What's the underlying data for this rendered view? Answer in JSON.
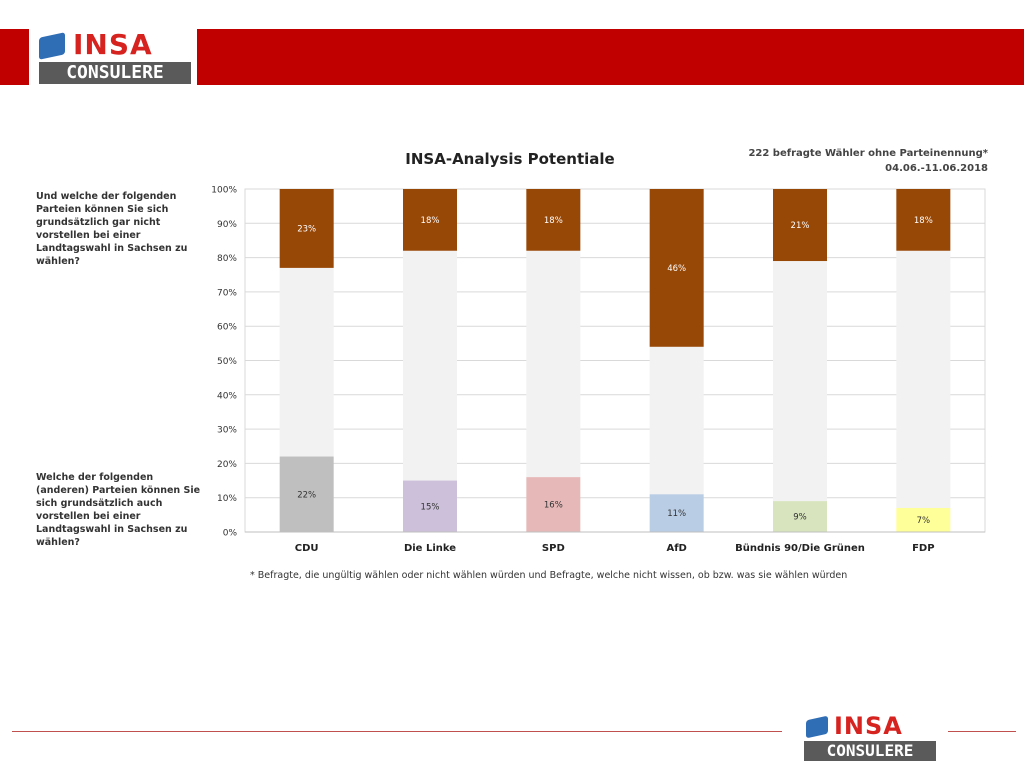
{
  "header": {
    "logo_insa": "INSA",
    "logo_consulere": "CONSULERE"
  },
  "meta": {
    "sample": "222 befragte Wähler ohne Parteinennung*",
    "dates": "04.06.-11.06.2018"
  },
  "questions": {
    "top": "Und welche der folgenden Parteien können Sie sich grundsätzlich gar nicht vorstellen bei einer Landtagswahl in Sachsen zu wählen?",
    "bottom": "Welche der folgenden (anderen) Parteien können Sie sich grundsätzlich auch vorstellen bei einer Landtagswahl in Sachsen zu wählen?"
  },
  "footnote": "* Befragte, die ungültig wählen oder nicht wählen würden und Befragte, welche nicht wissen, ob bzw. was sie wählen würden",
  "footer": {
    "logo_insa": "INSA",
    "logo_consulere": "CONSULERE"
  },
  "colors": {
    "brand_red": "#c00000",
    "rejection": "#974706",
    "middle": "#f2f2f2"
  },
  "chart_data": {
    "type": "bar",
    "stacked": true,
    "title": "INSA-Analysis Potentiale",
    "categories": [
      "CDU",
      "Die Linke",
      "SPD",
      "AfD",
      "Bündnis 90/Die Grünen",
      "FDP"
    ],
    "ylim": [
      0,
      100
    ],
    "yticks": [
      "0%",
      "10%",
      "20%",
      "30%",
      "40%",
      "50%",
      "60%",
      "70%",
      "80%",
      "90%",
      "100%"
    ],
    "grid": true,
    "potential": {
      "values": [
        22,
        15,
        16,
        11,
        9,
        7
      ],
      "labels": [
        "22%",
        "15%",
        "16%",
        "11%",
        "9%",
        "7%"
      ],
      "colors": [
        "#bfbfbf",
        "#ccc0da",
        "#e6b9b8",
        "#b9cde5",
        "#d7e4bd",
        "#ffff99"
      ]
    },
    "rejection": {
      "values": [
        23,
        18,
        18,
        46,
        21,
        18
      ],
      "labels": [
        "23%",
        "18%",
        "18%",
        "46%",
        "21%",
        "18%"
      ],
      "color": "#974706"
    }
  }
}
